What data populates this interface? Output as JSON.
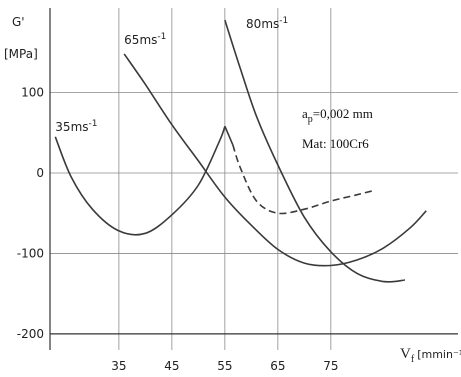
{
  "chart_data": {
    "type": "line",
    "xlim": [
      22,
      99
    ],
    "ylim": [
      -220,
      205
    ],
    "x_ticks": [
      35,
      45,
      55,
      65,
      75
    ],
    "y_ticks": [
      100,
      0,
      -100,
      -200
    ],
    "grid": true,
    "y_axis_symbol": "G'",
    "y_axis_unit": "[MPa]",
    "x_axis_symbol": "V",
    "x_axis_subscript": "f",
    "x_axis_unit": "[mmin⁻¹]",
    "annotation_param": "a",
    "annotation_param_sub": "p",
    "annotation_param_value": "=0,002 mm",
    "annotation_material": "Mat: 100Cr6",
    "series": [
      {
        "label": "35ms",
        "label_sup": "-1",
        "label_at": [
          23,
          52
        ],
        "style": "solid",
        "x": [
          23,
          26,
          30,
          35,
          40,
          45,
          50,
          54,
          55
        ],
        "y": [
          45,
          -5,
          -45,
          -72,
          -75,
          -52,
          -15,
          40,
          58
        ]
      },
      {
        "label": "65ms",
        "label_sup": "-1",
        "label_at": [
          36,
          160
        ],
        "style": "solid",
        "x": [
          36,
          40,
          45,
          50,
          55,
          60,
          65,
          70,
          75,
          80,
          85,
          90,
          93
        ],
        "y": [
          148,
          110,
          60,
          15,
          -30,
          -65,
          -95,
          -112,
          -115,
          -108,
          -93,
          -68,
          -47
        ]
      },
      {
        "label": "80ms",
        "label_sup": "-1",
        "label_at": [
          59,
          180
        ],
        "style": "solid",
        "x": [
          55,
          58,
          61,
          65,
          70,
          75,
          80,
          85,
          89
        ],
        "y": [
          190,
          128,
          70,
          10,
          -55,
          -98,
          -125,
          -135,
          -133
        ]
      },
      {
        "label": "",
        "style": "solid",
        "x": [
          55,
          56.5
        ],
        "y": [
          58,
          35
        ]
      },
      {
        "label": "",
        "style": "dashed",
        "x": [
          56.5,
          58,
          61,
          65,
          70,
          75,
          80,
          83
        ],
        "y": [
          35,
          5,
          -35,
          -50,
          -45,
          -35,
          -27,
          -22
        ]
      }
    ]
  }
}
